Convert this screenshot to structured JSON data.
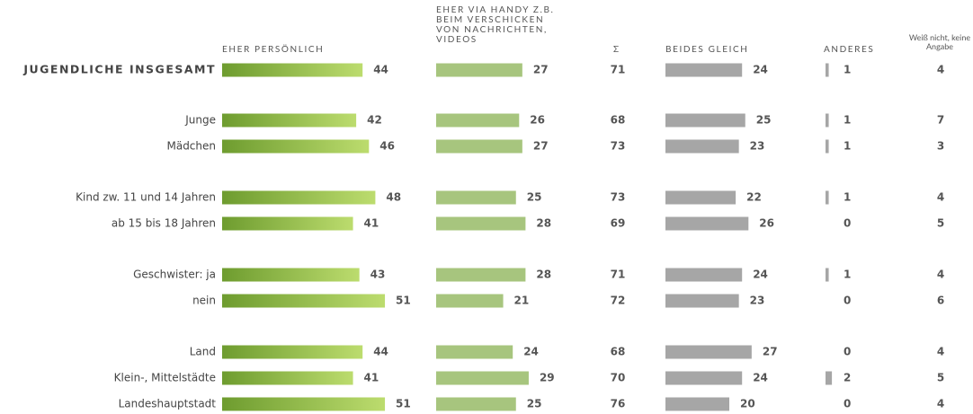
{
  "chart_data": {
    "type": "bar",
    "categories": [
      "JUGENDLICHE INSGESAMT",
      "Junge",
      "Mädchen",
      "Kind zw. 11 und 14 Jahren",
      "ab 15 bis 18 Jahren",
      "Geschwister: ja",
      "nein",
      "Land",
      "Klein-, Mittelstädte",
      "Landeshauptstadt"
    ],
    "series": [
      {
        "name": "EHER PERSÖNLICH",
        "type": "bar",
        "color": [
          "#6e9c2f",
          "#bcdc6e"
        ],
        "values": [
          44,
          42,
          46,
          48,
          41,
          43,
          51,
          44,
          41,
          51
        ]
      },
      {
        "name": "EHER VIA HANDY Z.B. BEIM VERSCHICKEN VON NACHRICHTEN, VIDEOS",
        "type": "bar",
        "color": "#a7c57e",
        "values": [
          27,
          26,
          27,
          25,
          28,
          28,
          21,
          24,
          29,
          25
        ]
      },
      {
        "name": "Σ",
        "type": "number",
        "values": [
          71,
          68,
          73,
          73,
          69,
          71,
          72,
          68,
          70,
          76
        ]
      },
      {
        "name": "BEIDES GLEICH",
        "type": "bar",
        "color": "#a6a6a6",
        "values": [
          24,
          25,
          23,
          22,
          26,
          24,
          23,
          27,
          24,
          20
        ]
      },
      {
        "name": "ANDERES",
        "type": "bar",
        "color": "#a6a6a6",
        "values": [
          1,
          1,
          1,
          1,
          0,
          1,
          0,
          0,
          2,
          0
        ]
      },
      {
        "name": "Weiß nicht, keine Angabe",
        "type": "number",
        "values": [
          4,
          7,
          3,
          4,
          5,
          4,
          6,
          4,
          5,
          4
        ]
      }
    ]
  }
}
